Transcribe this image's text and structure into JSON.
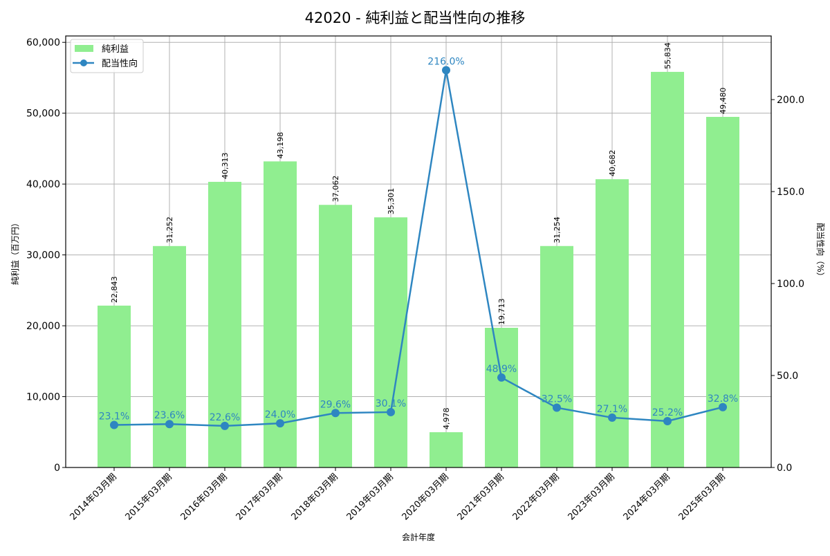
{
  "chart_data": {
    "type": "bar",
    "title": "42020 - 純利益と配当性向の推移",
    "xlabel": "会計年度",
    "ylabel": "純利益（百万円）",
    "y2label": "配当性向（%）",
    "categories": [
      "2014年03月期",
      "2015年03月期",
      "2016年03月期",
      "2017年03月期",
      "2018年03月期",
      "2019年03月期",
      "2020年03月期",
      "2021年03月期",
      "2022年03月期",
      "2023年03月期",
      "2024年03月期",
      "2025年03月期"
    ],
    "series": [
      {
        "name": "純利益",
        "type": "bar",
        "axis": "left",
        "color": "#90ee90",
        "values": [
          22843,
          31252,
          40313,
          43198,
          37062,
          35301,
          4978,
          19713,
          31254,
          40682,
          55834,
          49480
        ],
        "labels": [
          "22,843",
          "31,252",
          "40,313",
          "43,198",
          "37,062",
          "35,301",
          "4,978",
          "19,713",
          "31,254",
          "40,682",
          "55,834",
          "49,480"
        ]
      },
      {
        "name": "配当性向",
        "type": "line",
        "axis": "right",
        "color": "#2e86c1",
        "values": [
          23.1,
          23.6,
          22.6,
          24.0,
          29.6,
          30.1,
          216.0,
          48.9,
          32.5,
          27.1,
          25.2,
          32.8
        ],
        "labels": [
          "23.1%",
          "23.6%",
          "22.6%",
          "24.0%",
          "29.6%",
          "30.1%",
          "216.0%",
          "48.9%",
          "32.5%",
          "27.1%",
          "25.2%",
          "32.8%"
        ]
      }
    ],
    "ylim": [
      0,
      60900
    ],
    "y2lim": [
      0,
      234.6
    ],
    "yticks": [
      0,
      10000,
      20000,
      30000,
      40000,
      50000,
      60000
    ],
    "ytick_labels": [
      "0",
      "10,000",
      "20,000",
      "30,000",
      "40,000",
      "50,000",
      "60,000"
    ],
    "y2ticks": [
      0,
      50,
      100,
      150,
      200
    ],
    "y2tick_labels": [
      "0.0",
      "50.0",
      "100.0",
      "150.0",
      "200.0"
    ],
    "grid": true,
    "legend": "top-left"
  }
}
